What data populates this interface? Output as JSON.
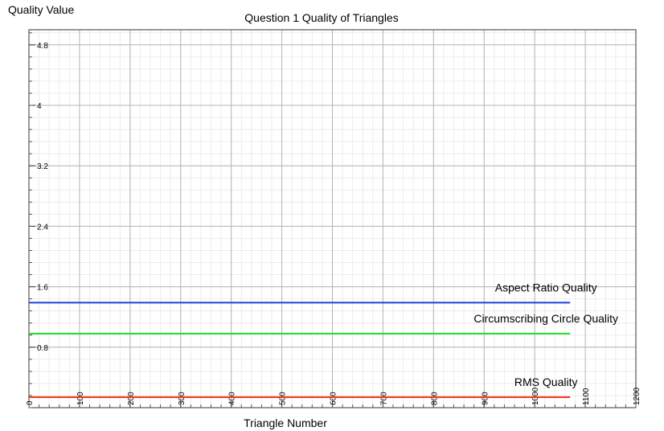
{
  "chart_data": {
    "type": "line",
    "title": "Question 1 Quality of Triangles",
    "ylabel": "Quality Value",
    "xlabel": "Triangle Number",
    "xlim": [
      0,
      1200
    ],
    "ylim": [
      0,
      5.0
    ],
    "x_ticks": [
      0,
      100,
      200,
      300,
      400,
      500,
      600,
      700,
      800,
      900,
      1000,
      1100,
      1200
    ],
    "x_tick_labels": [
      "0",
      "100",
      "200",
      "300",
      "400",
      "500",
      "600",
      "700",
      "800",
      "900",
      "1000",
      "1100",
      "1200"
    ],
    "y_ticks": [
      0.8,
      1.6,
      2.4,
      3.2,
      4,
      4.8
    ],
    "y_tick_labels": [
      "0.8",
      "1.6",
      "2.4",
      "3.2",
      "4",
      "4.8"
    ],
    "grid": true,
    "series": [
      {
        "name": "Aspect Ratio Quality",
        "color": "#1f3fd6",
        "x": [
          0,
          1070
        ],
        "y": [
          1.39,
          1.39
        ]
      },
      {
        "name": "Circumscribing Circle Quality",
        "color": "#22dd33",
        "x": [
          0,
          1070
        ],
        "y": [
          0.98,
          0.98
        ]
      },
      {
        "name": "RMS Quality",
        "color": "#ee3311",
        "x": [
          0,
          1070
        ],
        "y": [
          0.14,
          0.14
        ]
      }
    ]
  }
}
